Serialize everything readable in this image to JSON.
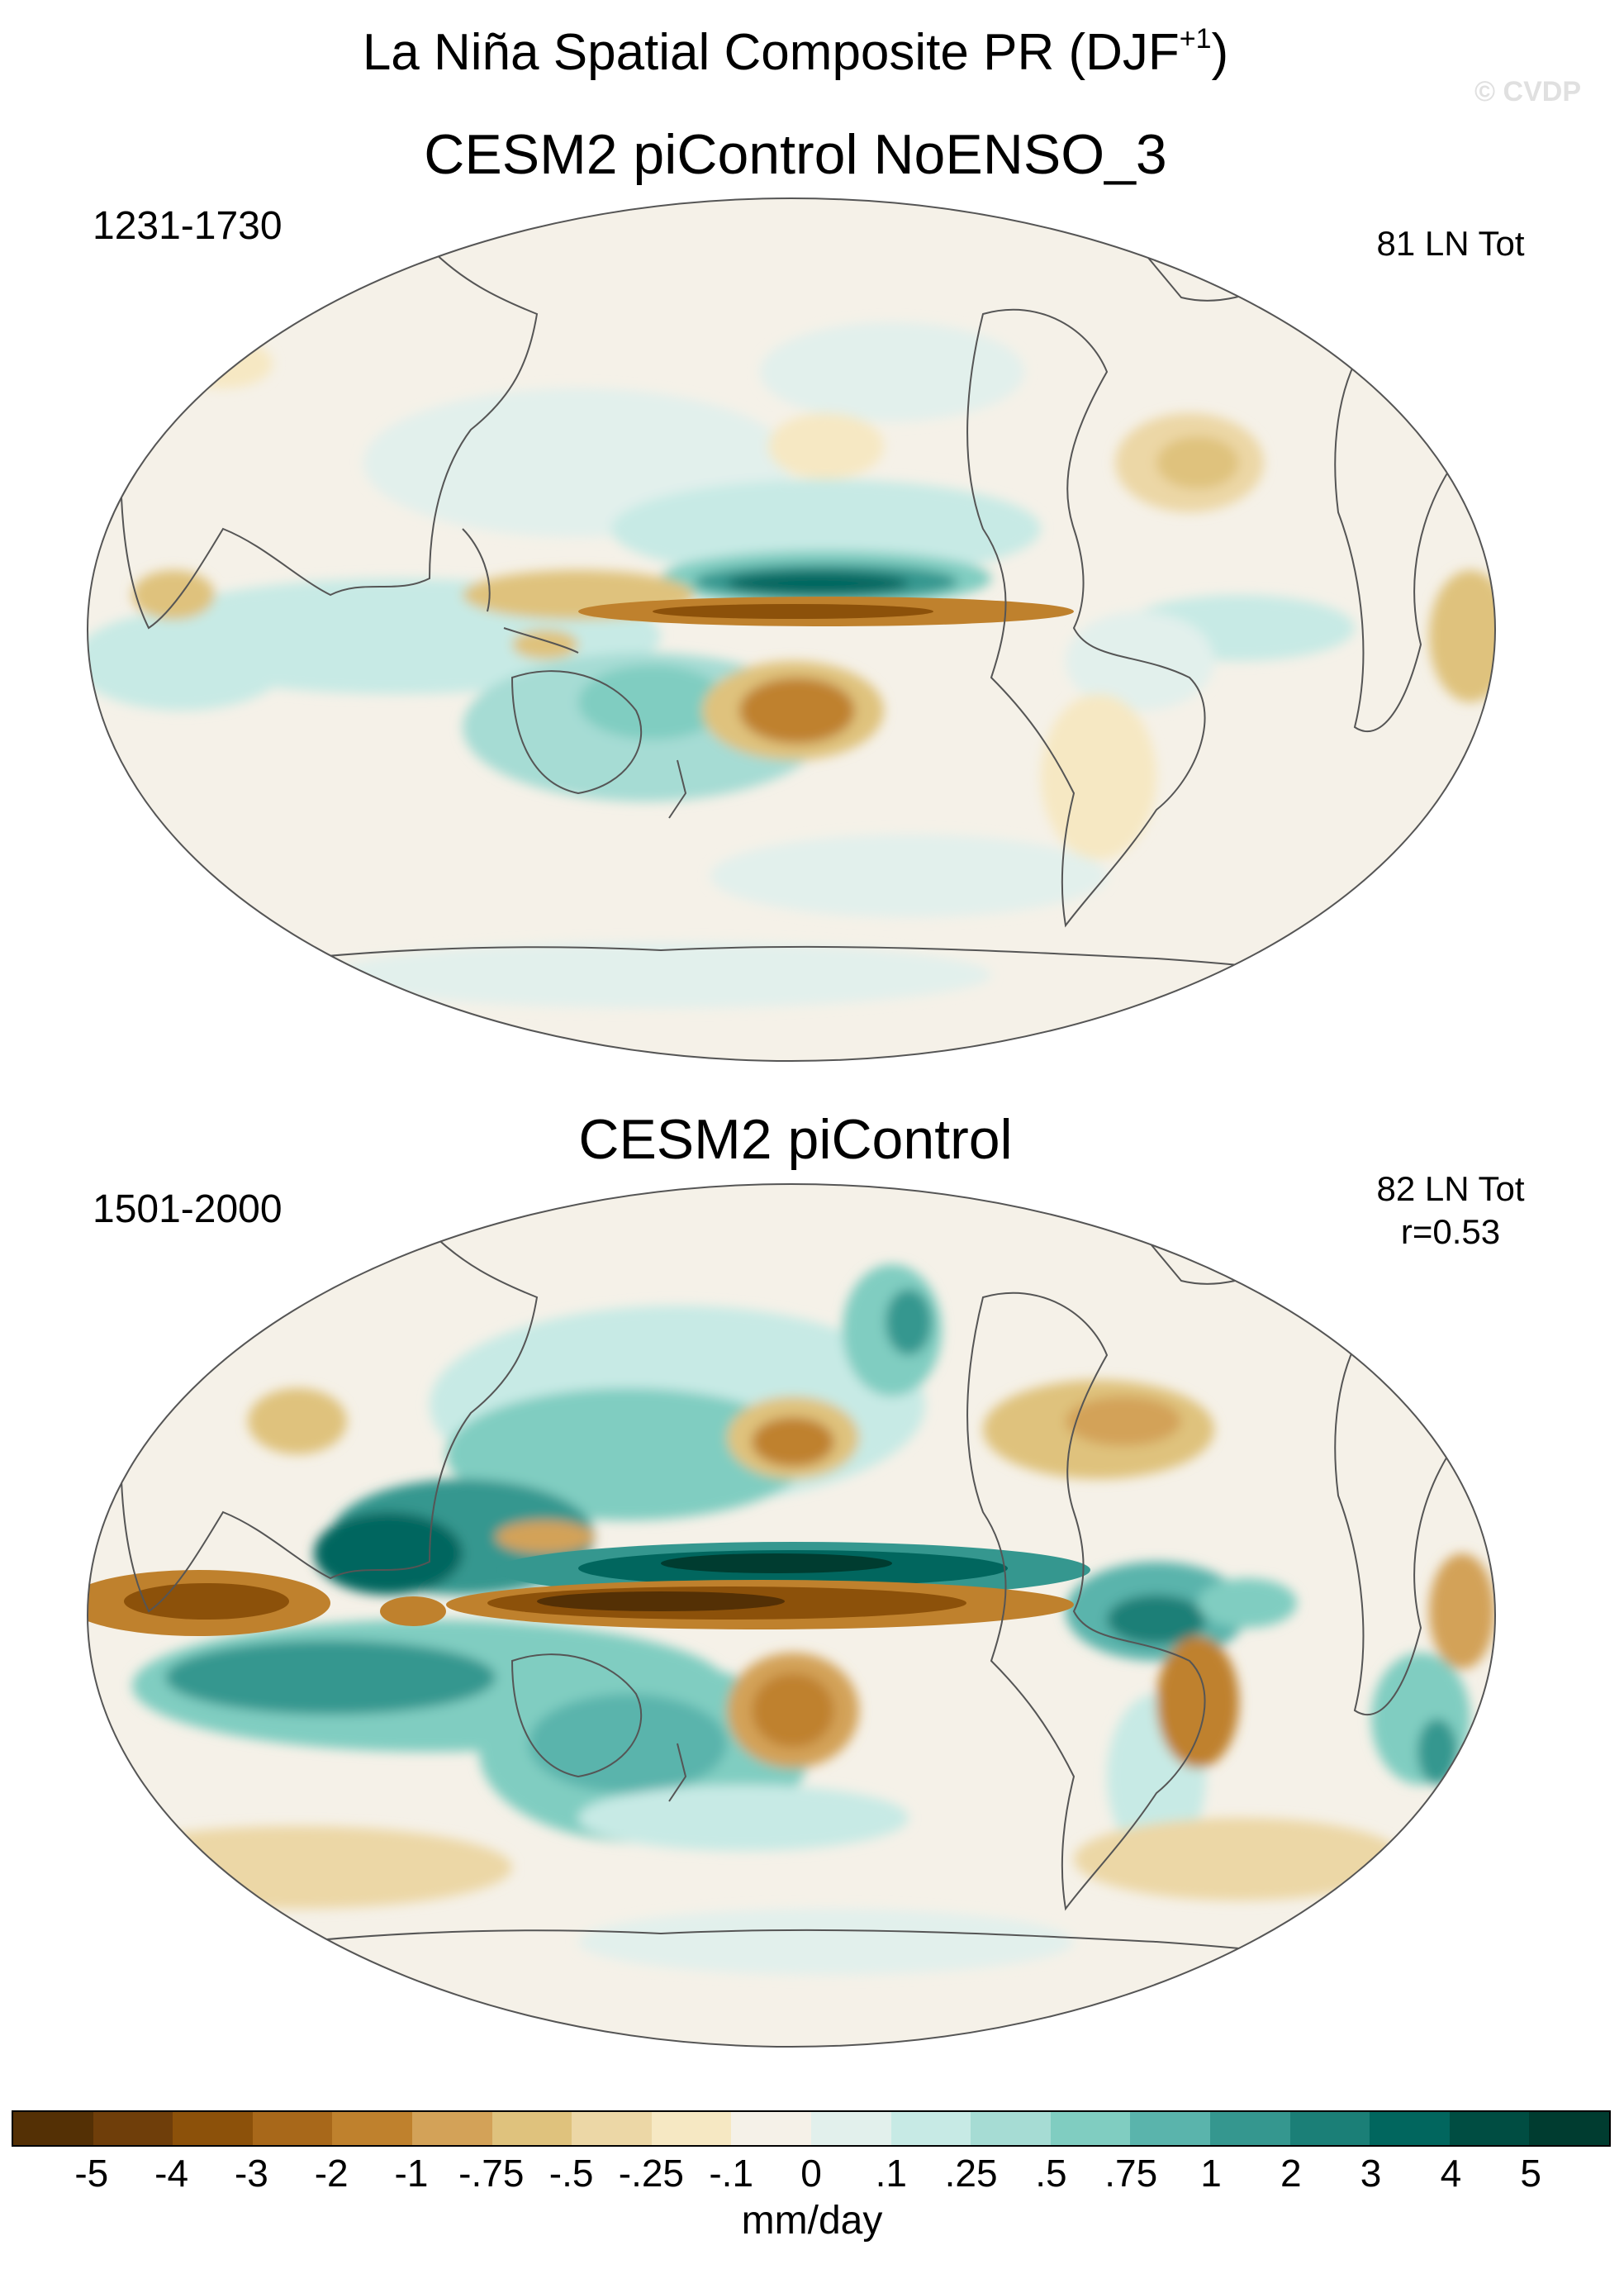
{
  "figure": {
    "title": "La Niña Spatial Composite PR (DJF",
    "title_superscript": "+1",
    "title_close": ")",
    "copyright": "© CVDP"
  },
  "panels": [
    {
      "title": "CESM2 piControl NoENSO_3",
      "period": "1231-1730",
      "count_label": "81 LN Tot",
      "stat_label": ""
    },
    {
      "title": "CESM2 piControl",
      "period": "1501-2000",
      "count_label": "82 LN Tot",
      "stat_label": "r=0.53"
    }
  ],
  "colorbar": {
    "units": "mm/day",
    "tick_labels": [
      "-5",
      "-4",
      "-3",
      "-2",
      "-1",
      "-.75",
      "-.5",
      "-.25",
      "-.1",
      "0",
      ".1",
      ".25",
      ".5",
      ".75",
      "1",
      "2",
      "3",
      "4",
      "5"
    ],
    "colors": [
      "#543005",
      "#6f3e0a",
      "#8c510a",
      "#a8681a",
      "#bf812d",
      "#d3a258",
      "#dfc27d",
      "#ecd7a6",
      "#f6e8c3",
      "#f5f1e8",
      "#e2f0ec",
      "#c7eae5",
      "#a6dcd4",
      "#80cdc1",
      "#5ab4ac",
      "#35978f",
      "#1b7f77",
      "#01665e",
      "#004d42",
      "#003c30"
    ]
  },
  "chart_data": {
    "type": "map",
    "projection": "Robinson (Pacific-centered)",
    "variable": "PR anomaly",
    "season": "DJF+1",
    "levels": [
      -5,
      -4,
      -3,
      -2,
      -1,
      -0.75,
      -0.5,
      -0.25,
      -0.1,
      0,
      0.1,
      0.25,
      0.5,
      0.75,
      1,
      2,
      3,
      4,
      5
    ],
    "features": [
      {
        "panel": 0,
        "region": "central equatorial Pacific",
        "value": -3
      },
      {
        "panel": 0,
        "region": "north equatorial Pacific band",
        "value": 3
      },
      {
        "panel": 0,
        "region": "South Pacific Convergence Zone",
        "value": -2
      },
      {
        "panel": 0,
        "region": "Maritime Continent / Indian Ocean",
        "value": 0.75
      },
      {
        "panel": 1,
        "region": "central equatorial Pacific",
        "value": -5
      },
      {
        "panel": 1,
        "region": "north equatorial Pacific band",
        "value": 5
      },
      {
        "panel": 1,
        "region": "western equatorial Indian Ocean",
        "value": -4
      },
      {
        "panel": 1,
        "region": "Maritime Continent",
        "value": 3
      },
      {
        "panel": 1,
        "region": "South Pacific Convergence Zone",
        "value": -2
      },
      {
        "panel": 1,
        "region": "North Pacific",
        "value": -2
      },
      {
        "panel": 1,
        "region": "northern South America / Amazon",
        "value": 2
      },
      {
        "panel": 1,
        "region": "equatorial Atlantic",
        "value": -2
      }
    ]
  }
}
